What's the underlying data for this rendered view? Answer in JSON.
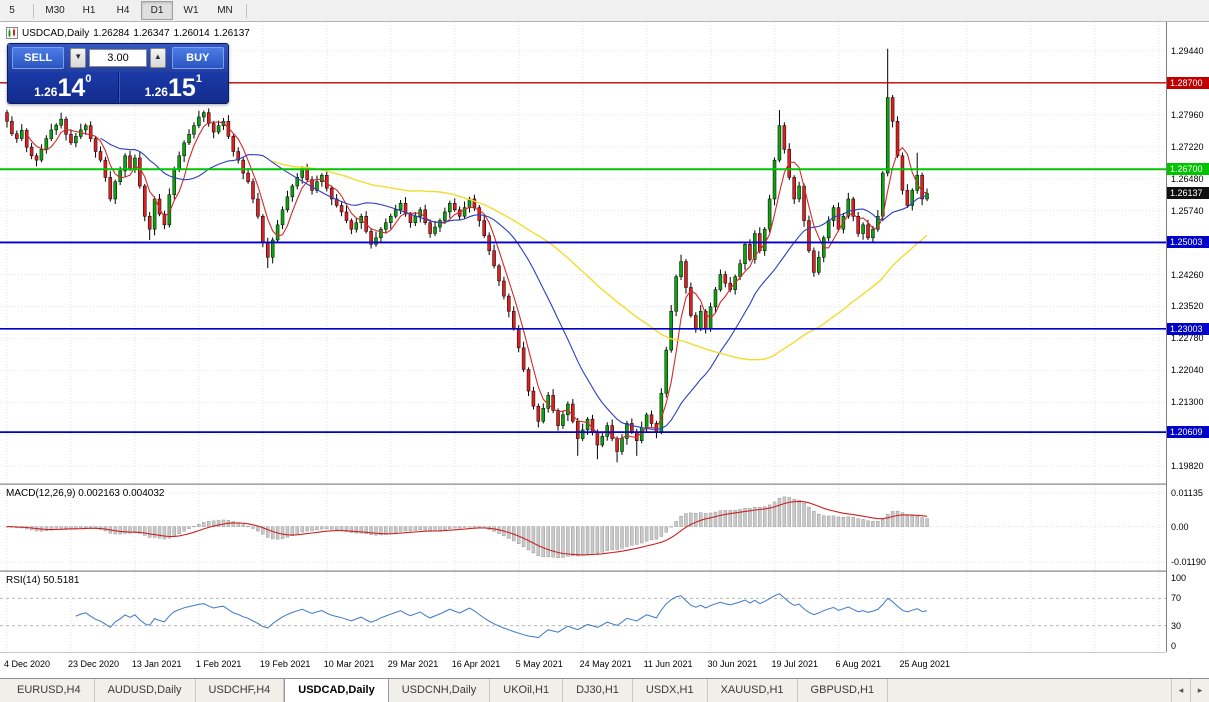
{
  "toolbar": {
    "timeframes": [
      "5",
      "M30",
      "H1",
      "H4",
      "D1",
      "W1",
      "MN"
    ],
    "active": "D1"
  },
  "chart_header": {
    "symbol_period": "USDCAD,Daily",
    "open": "1.26284",
    "high": "1.26347",
    "low": "1.26014",
    "close": "1.26137"
  },
  "one_click": {
    "sell_label": "SELL",
    "buy_label": "BUY",
    "volume": "3.00",
    "sell_price_small": "1.26",
    "sell_price_big": "14",
    "sell_price_sup": "0",
    "buy_price_small": "1.26",
    "buy_price_big": "15",
    "buy_price_sup": "1"
  },
  "tabs": {
    "items": [
      "EURUSD,H4",
      "AUDUSD,Daily",
      "USDCHF,H4",
      "USDCAD,Daily",
      "USDCNH,Daily",
      "UKOil,H1",
      "DJ30,H1",
      "USDX,H1",
      "XAUUSD,H1",
      "GBPUSD,H1"
    ],
    "active_index": 3,
    "scroll_left": "◂",
    "scroll_right": "▸"
  },
  "chart_data": {
    "type": "candlestick",
    "symbol": "USDCAD",
    "period": "Daily",
    "x_labels": [
      "4 Dec 2020",
      "23 Dec 2020",
      "13 Jan 2021",
      "1 Feb 2021",
      "19 Feb 2021",
      "10 Mar 2021",
      "29 Mar 2021",
      "16 Apr 2021",
      "5 May 2021",
      "24 May 2021",
      "11 Jun 2021",
      "30 Jun 2021",
      "19 Jul 2021",
      "6 Aug 2021",
      "25 Aug 2021"
    ],
    "y_range": [
      1.1943,
      1.3011
    ],
    "y_ticks": [
      1.2944,
      1.287,
      1.2796,
      1.2722,
      1.2648,
      1.2574,
      1.25,
      1.2426,
      1.2352,
      1.2278,
      1.2204,
      1.213,
      1.2056,
      1.1982
    ],
    "grid": true,
    "candles": {
      "first_open": 1.2801,
      "closes": [
        1.2781,
        1.2752,
        1.2741,
        1.276,
        1.2721,
        1.2701,
        1.2691,
        1.2716,
        1.2741,
        1.2761,
        1.2772,
        1.2786,
        1.2751,
        1.2731,
        1.2746,
        1.2761,
        1.2771,
        1.2741,
        1.2711,
        1.2691,
        1.2651,
        1.2601,
        1.2641,
        1.2666,
        1.2701,
        1.2671,
        1.2696,
        1.2631,
        1.2561,
        1.2531,
        1.2601,
        1.2566,
        1.2541,
        1.2611,
        1.2671,
        1.2701,
        1.2731,
        1.2751,
        1.2771,
        1.2791,
        1.2801,
        1.2776,
        1.2756,
        1.2771,
        1.2781,
        1.2746,
        1.2711,
        1.2691,
        1.2661,
        1.2641,
        1.2601,
        1.2561,
        1.2501,
        1.2466,
        1.2506,
        1.2541,
        1.2576,
        1.2606,
        1.2631,
        1.2651,
        1.2671,
        1.2646,
        1.2621,
        1.2641,
        1.2656,
        1.2626,
        1.2601,
        1.2586,
        1.2571,
        1.2551,
        1.2531,
        1.2546,
        1.2561,
        1.2526,
        1.2496,
        1.2511,
        1.2531,
        1.2546,
        1.2561,
        1.2576,
        1.2591,
        1.2566,
        1.2546,
        1.2561,
        1.2576,
        1.2546,
        1.2521,
        1.2536,
        1.2551,
        1.2571,
        1.2591,
        1.2576,
        1.2561,
        1.2581,
        1.2601,
        1.2581,
        1.2551,
        1.2516,
        1.2481,
        1.2446,
        1.2411,
        1.2376,
        1.2341,
        1.2301,
        1.2256,
        1.2206,
        1.2156,
        1.2121,
        1.2086,
        1.2116,
        1.2146,
        1.2111,
        1.2076,
        1.2101,
        1.2126,
        1.2086,
        1.2046,
        1.2066,
        1.2091,
        1.2061,
        1.2031,
        1.2051,
        1.2076,
        1.2046,
        1.2016,
        1.2046,
        1.2081,
        1.2061,
        1.2041,
        1.2071,
        1.2101,
        1.2081,
        1.2061,
        1.2151,
        1.2251,
        1.2341,
        1.2421,
        1.2456,
        1.2396,
        1.2331,
        1.2301,
        1.2341,
        1.2301,
        1.2351,
        1.2391,
        1.2426,
        1.2406,
        1.2391,
        1.2421,
        1.2451,
        1.2496,
        1.2461,
        1.2521,
        1.2481,
        1.2531,
        1.2601,
        1.2691,
        1.2771,
        1.2716,
        1.2651,
        1.2601,
        1.2631,
        1.2551,
        1.2481,
        1.2431,
        1.2466,
        1.2511,
        1.2551,
        1.2581,
        1.2531,
        1.2561,
        1.2601,
        1.2561,
        1.2521,
        1.2541,
        1.2511,
        1.2531,
        1.2561,
        1.2661,
        1.2836,
        1.2781,
        1.2701,
        1.2621,
        1.2586,
        1.2621,
        1.2656,
        1.2601,
        1.26137
      ],
      "high_overrides": {
        "0": 1.2806,
        "11": 1.2801,
        "137": 1.2472,
        "157": 1.2807,
        "179": 1.2949,
        "185": 1.2708
      },
      "low_overrides": {
        "29": 1.2506,
        "53": 1.2441,
        "116": 1.2006,
        "120": 1.1998,
        "124": 1.1991,
        "128": 1.2006,
        "164": 1.2421
      },
      "up_color": "#0ca30c",
      "down_color": "#de1f1f"
    },
    "moving_averages": [
      {
        "name": "fast",
        "window": 5,
        "color": "#d42a2a"
      },
      {
        "name": "medium",
        "window": 20,
        "color": "#2b3fbf"
      },
      {
        "name": "slow",
        "window": 55,
        "color": "#f2dc30"
      }
    ],
    "levels": [
      {
        "price": 1.287,
        "label": "1.28700",
        "color": "#c00000",
        "width": 1.4
      },
      {
        "price": 1.267,
        "label": "1.26700",
        "color": "#00c400",
        "width": 2
      },
      {
        "price": 1.25003,
        "label": "1.25003",
        "color": "#0000c8",
        "width": 1.8
      },
      {
        "price": 1.23003,
        "label": "1.23003",
        "color": "#0000c8",
        "width": 1.6
      },
      {
        "price": 1.20609,
        "label": "1.20609",
        "color": "#0000c8",
        "width": 1.8
      }
    ],
    "current": {
      "price": 1.26137,
      "label": "1.26137",
      "color": "#101010"
    },
    "macd": {
      "header": "MACD(12,26,9) 0.002163 0.004032",
      "ticks": [
        "0.01135",
        "0.00",
        "-0.01190"
      ],
      "range": [
        -0.0146,
        0.014
      ],
      "histogram_color": "#c9c9c9",
      "signal_color": "#cc2222"
    },
    "rsi": {
      "header": "RSI(14) 50.5181",
      "ticks": [
        100,
        70,
        30,
        0
      ],
      "levels": [
        70,
        30
      ],
      "line_color": "#3c78c8"
    }
  }
}
